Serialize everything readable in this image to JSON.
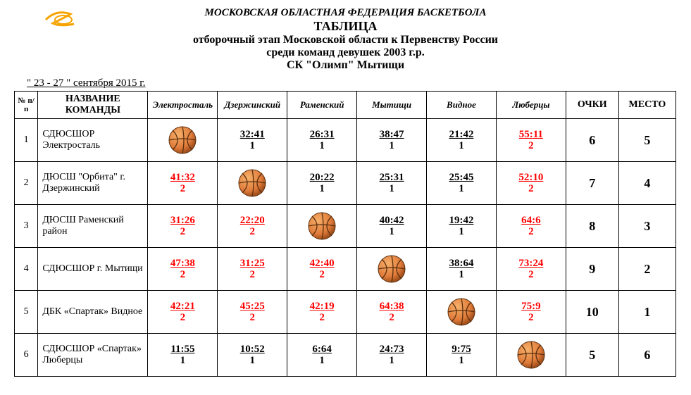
{
  "header": {
    "org": "МОСКОВСКАЯ ОБЛАСТНАЯ ФЕДЕРАЦИЯ БАСКЕТБОЛА",
    "title": "ТАБЛИЦА",
    "line1": "отборочный этап Московской области к Первенству России",
    "line2": "среди команд девушек 2003 г.р.",
    "line3": "СК \"Олимп\" Мытищи",
    "date": "\" 23 - 27 \" сентября 2015 г."
  },
  "columns": {
    "num": "№ п/п",
    "team": "НАЗВАНИЕ КОМАНДЫ",
    "opp": [
      "Электросталь",
      "Дзержинский",
      "Раменский",
      "Мытищи",
      "Видное",
      "Люберцы"
    ],
    "points": "ОЧКИ",
    "place": "МЕСТО"
  },
  "colors": {
    "win": "#ff0000",
    "loss": "#000000",
    "ball_fill": "#e07b3a",
    "ball_stroke": "#5a2f0e",
    "logo": "#f7a400"
  },
  "rows": [
    {
      "n": "1",
      "team": "СДЮСШОР Электросталь",
      "cells": [
        {
          "self": true
        },
        {
          "score": "32:41",
          "pts": "1",
          "color": "loss"
        },
        {
          "score": "26:31",
          "pts": "1",
          "color": "loss"
        },
        {
          "score": "38:47",
          "pts": "1",
          "color": "loss"
        },
        {
          "score": "21:42",
          "pts": "1",
          "color": "loss"
        },
        {
          "score": "55:11",
          "pts": "2",
          "color": "win"
        }
      ],
      "points": "6",
      "place": "5"
    },
    {
      "n": "2",
      "team": "ДЮСШ \"Орбита\" г. Дзержинский",
      "cells": [
        {
          "score": "41:32",
          "pts": "2",
          "color": "win"
        },
        {
          "self": true
        },
        {
          "score": "20:22",
          "pts": "1",
          "color": "loss"
        },
        {
          "score": "25:31",
          "pts": "1",
          "color": "loss"
        },
        {
          "score": "25:45",
          "pts": "1",
          "color": "loss"
        },
        {
          "score": "52:10",
          "pts": "2",
          "color": "win"
        }
      ],
      "points": "7",
      "place": "4"
    },
    {
      "n": "3",
      "team": "ДЮСШ  Раменский район",
      "cells": [
        {
          "score": "31:26",
          "pts": "2",
          "color": "win"
        },
        {
          "score": "22:20",
          "pts": "2",
          "color": "win"
        },
        {
          "self": true
        },
        {
          "score": "40:42",
          "pts": "1",
          "color": "loss"
        },
        {
          "score": "19:42",
          "pts": "1",
          "color": "loss"
        },
        {
          "score": "64:6",
          "pts": "2",
          "color": "win"
        }
      ],
      "points": "8",
      "place": "3"
    },
    {
      "n": "4",
      "team": "СДЮСШОР г. Мытищи",
      "cells": [
        {
          "score": "47:38",
          "pts": "2",
          "color": "win"
        },
        {
          "score": "31:25",
          "pts": "2",
          "color": "win"
        },
        {
          "score": "42:40",
          "pts": "2",
          "color": "win"
        },
        {
          "self": true
        },
        {
          "score": "38:64",
          "pts": "1",
          "color": "loss"
        },
        {
          "score": "73:24",
          "pts": "2",
          "color": "win"
        }
      ],
      "points": "9",
      "place": "2"
    },
    {
      "n": "5",
      "team": "ДБК «Спартак» Видное",
      "cells": [
        {
          "score": "42:21",
          "pts": "2",
          "color": "win"
        },
        {
          "score": "45:25",
          "pts": "2",
          "color": "win"
        },
        {
          "score": "42:19",
          "pts": "2",
          "color": "win"
        },
        {
          "score": "64:38",
          "pts": "2",
          "color": "win"
        },
        {
          "self": true
        },
        {
          "score": "75:9",
          "pts": "2",
          "color": "win"
        }
      ],
      "points": "10",
      "place": "1"
    },
    {
      "n": "6",
      "team": "СДЮСШОР «Спартак» Люберцы",
      "cells": [
        {
          "score": "11:55",
          "pts": "1",
          "color": "loss"
        },
        {
          "score": "10:52",
          "pts": "1",
          "color": "loss"
        },
        {
          "score": "6:64",
          "pts": "1",
          "color": "loss"
        },
        {
          "score": "24:73",
          "pts": "1",
          "color": "loss"
        },
        {
          "score": "9:75",
          "pts": "1",
          "color": "loss"
        },
        {
          "self": true
        }
      ],
      "points": "5",
      "place": "6"
    }
  ]
}
